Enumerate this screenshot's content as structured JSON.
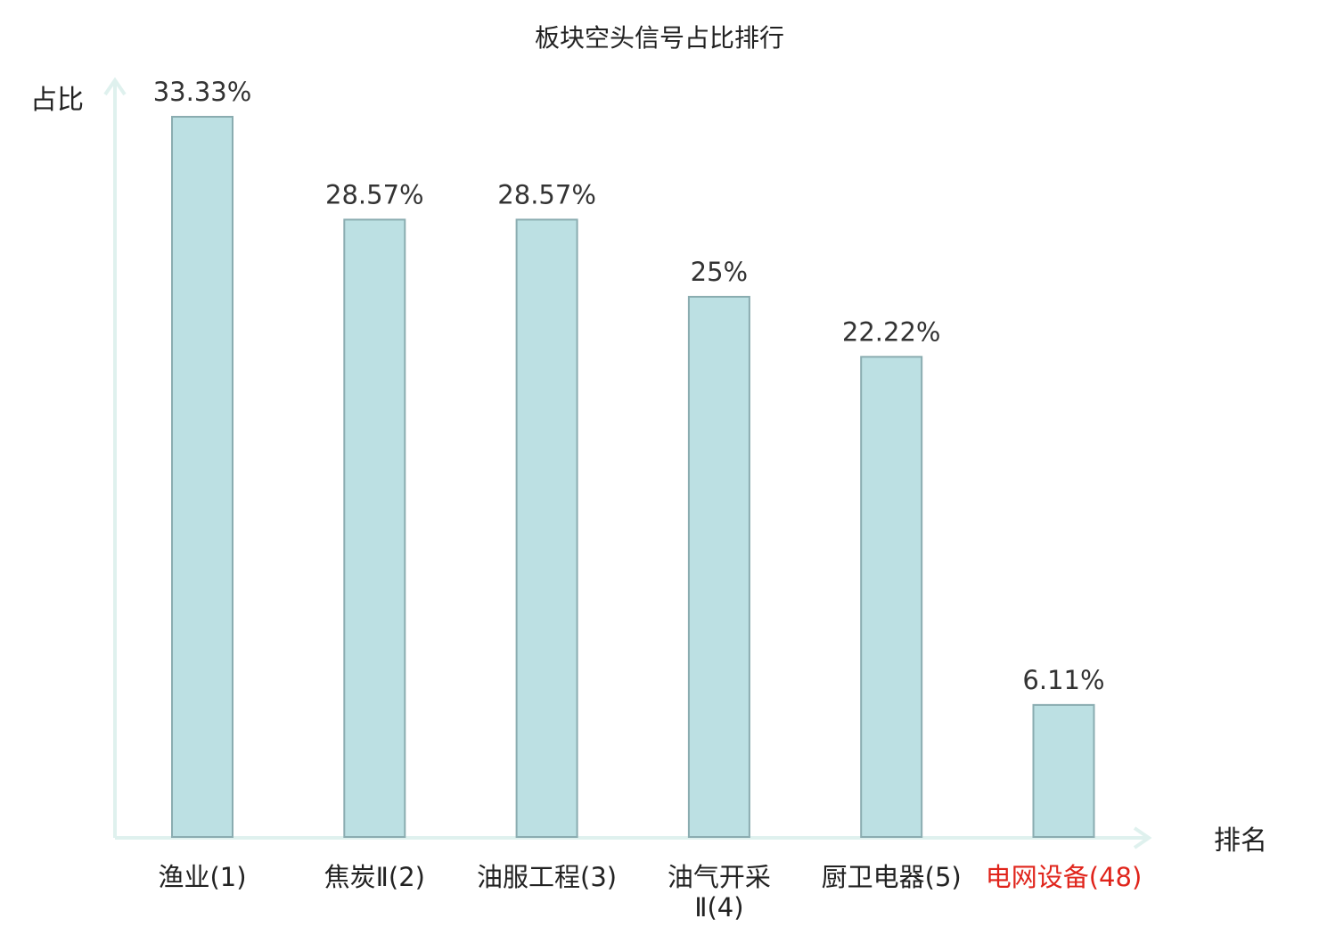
{
  "chart_data": {
    "type": "bar",
    "title": "板块空头信号占比排行",
    "ylabel": "占比",
    "xlabel": "排名",
    "ylim": [
      0,
      35
    ],
    "grid": false,
    "categories": [
      {
        "name": "渔业",
        "rank": "(1)",
        "lines": [
          "渔业(1)"
        ]
      },
      {
        "name": "焦炭Ⅱ",
        "rank": "(2)",
        "lines": [
          "焦炭Ⅱ(2)"
        ]
      },
      {
        "name": "油服工程",
        "rank": "(3)",
        "lines": [
          "油服工程(3)"
        ]
      },
      {
        "name": "油气开采Ⅱ",
        "rank": "(4)",
        "lines": [
          "油气开采",
          "Ⅱ(4)"
        ]
      },
      {
        "name": "厨卫电器",
        "rank": "(5)",
        "lines": [
          "厨卫电器(5)"
        ]
      },
      {
        "name": "电网设备",
        "rank": "(48)",
        "lines": [
          "电网设备(48)"
        ],
        "highlight": true
      }
    ],
    "values": [
      33.33,
      28.57,
      28.57,
      25,
      22.22,
      6.11
    ],
    "value_labels": [
      "33.33%",
      "28.57%",
      "28.57%",
      "25%",
      "22.22%",
      "6.11%"
    ],
    "colors": {
      "bar_fill": "#bce0e3",
      "bar_stroke": "#8aacb0",
      "axis": "#dff1ee",
      "label": "#222222",
      "highlight": "#e0241b"
    }
  }
}
